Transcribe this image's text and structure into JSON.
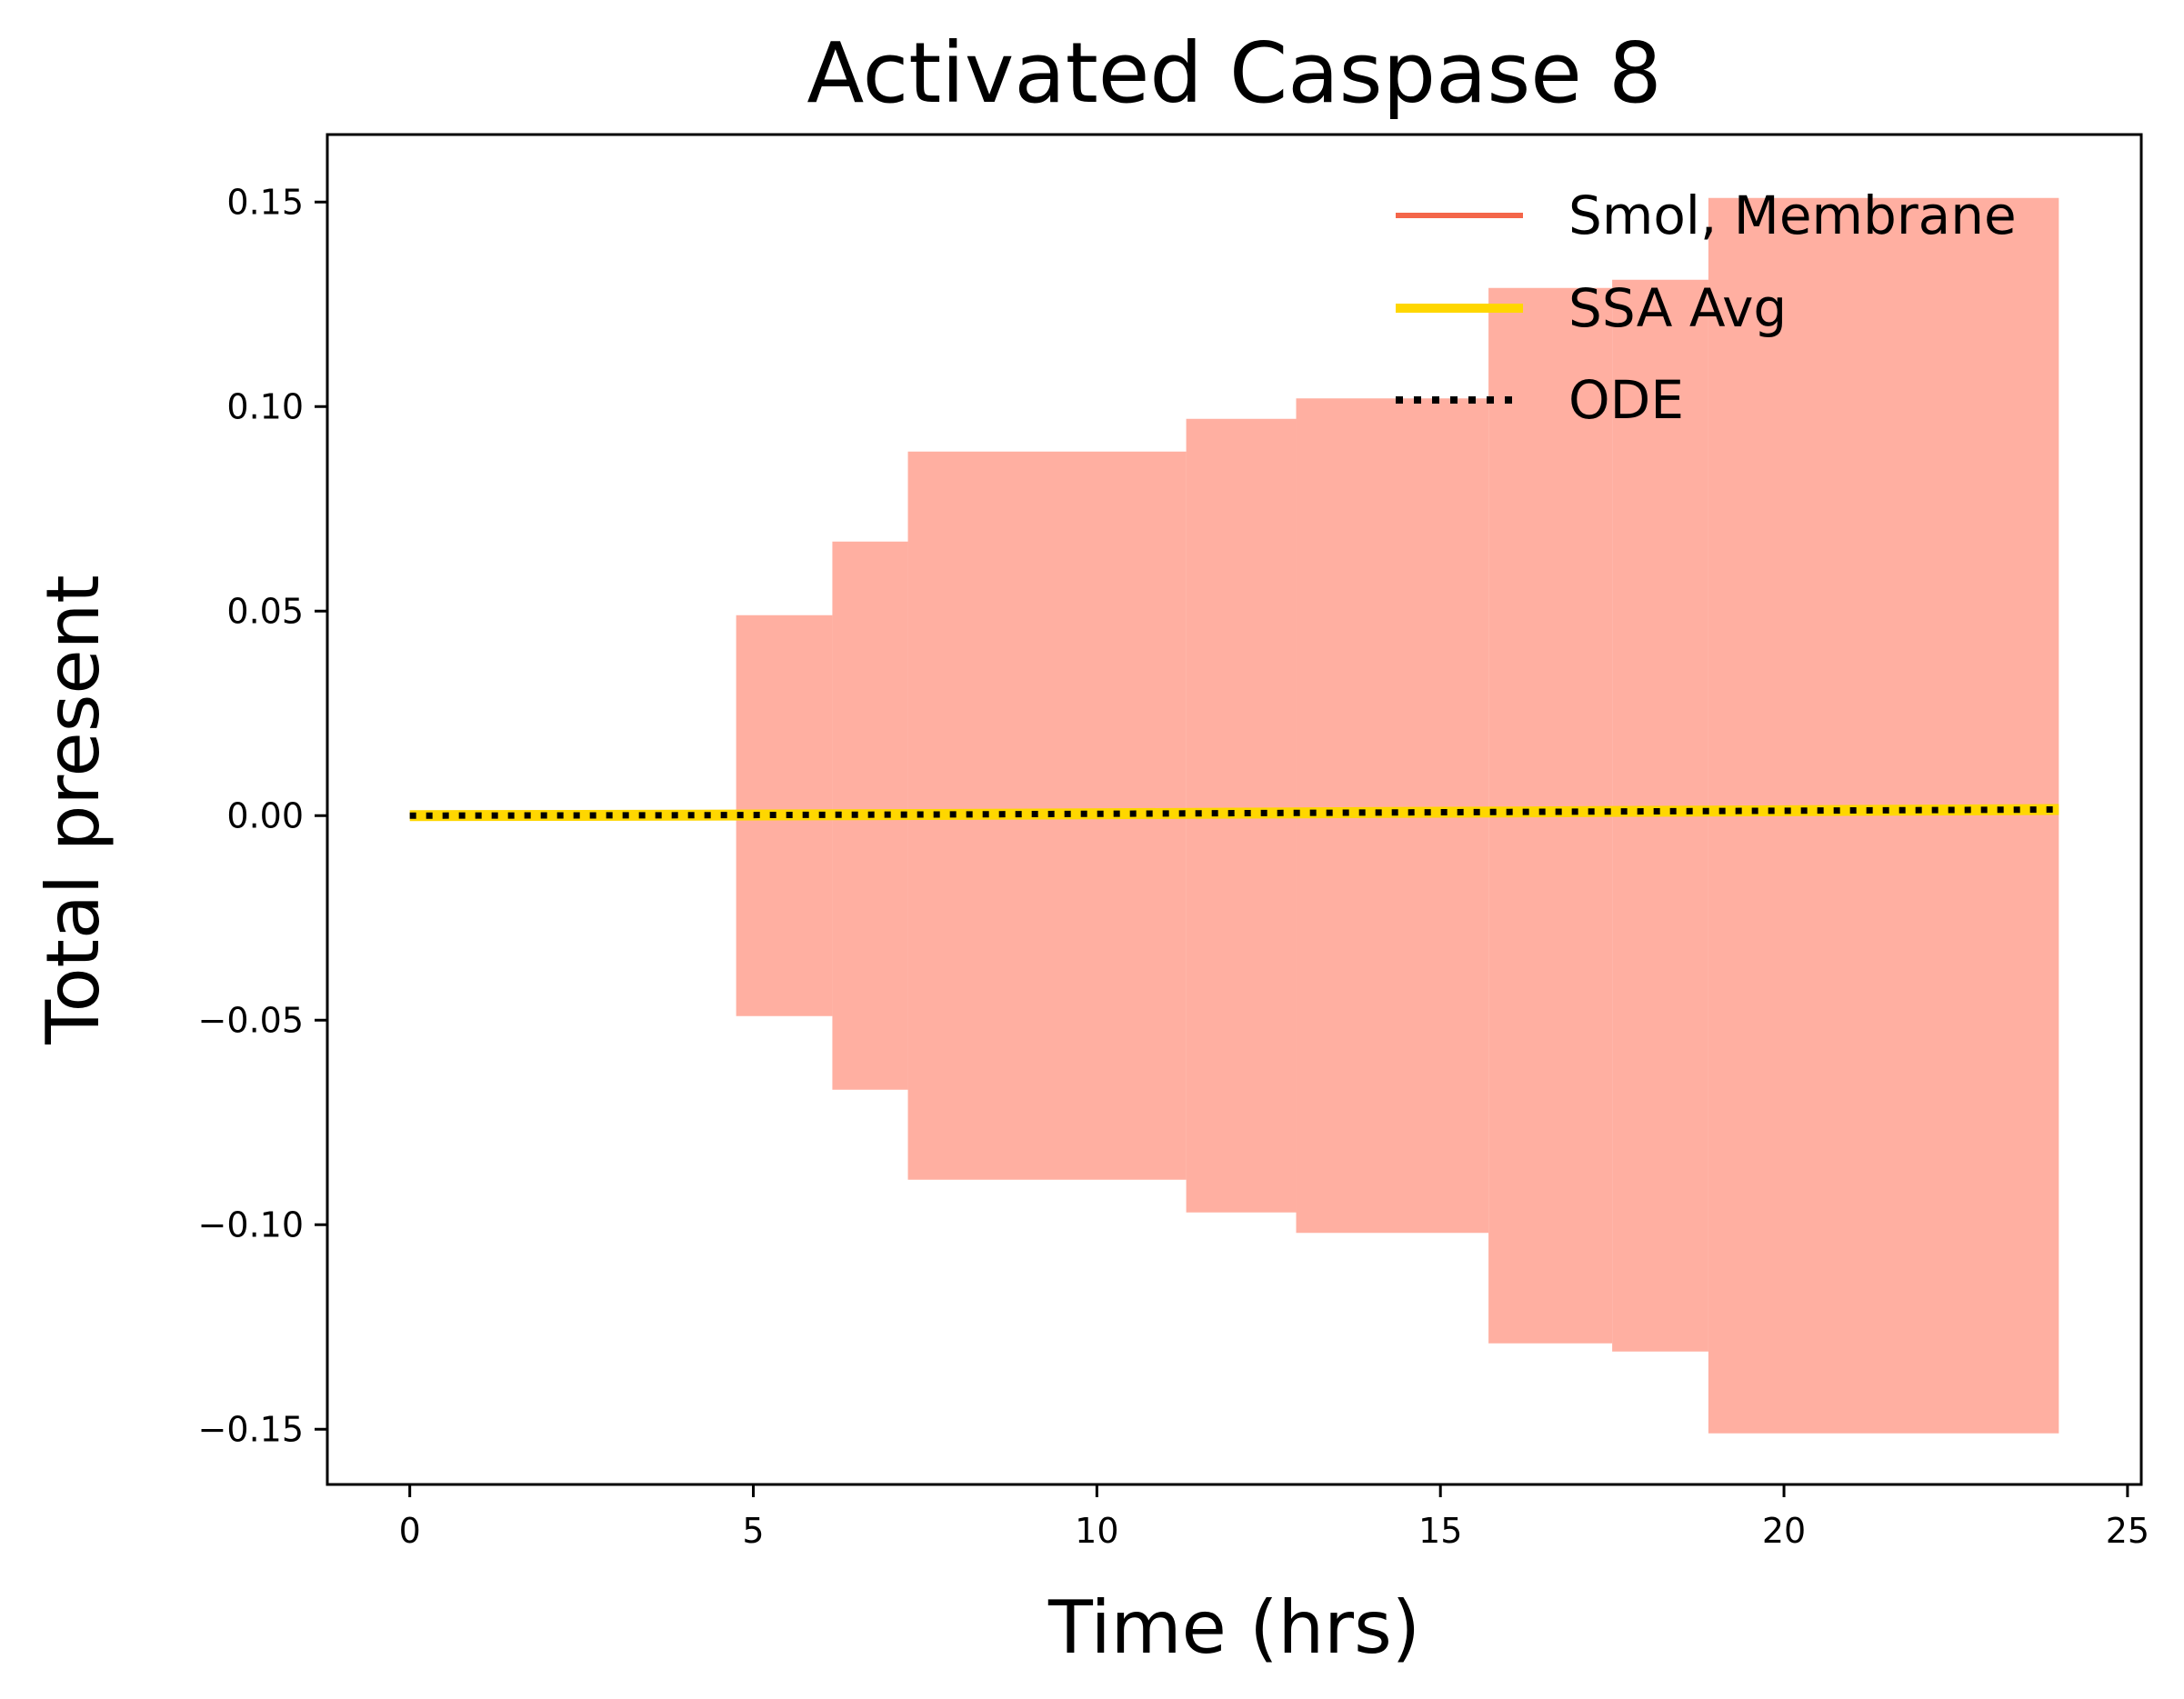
{
  "chart_data": {
    "type": "line",
    "title": "Activated Caspase 8",
    "xlabel": "Time (hrs)",
    "ylabel": "Total present",
    "xlim": [
      -1.2,
      25.2
    ],
    "ylim": [
      -0.1635,
      0.1665
    ],
    "xticks": [
      0,
      5,
      10,
      15,
      20,
      25
    ],
    "xtick_labels": [
      "0",
      "5",
      "10",
      "15",
      "20",
      "25"
    ],
    "yticks": [
      -0.15,
      -0.1,
      -0.05,
      0.0,
      0.05,
      0.1,
      0.15
    ],
    "ytick_labels": [
      "−0.15",
      "−0.10",
      "−0.05",
      "0.00",
      "0.05",
      "0.10",
      "0.15"
    ],
    "grid": false,
    "legend_position": "top-right",
    "series": [
      {
        "name": "Smol, Membrane",
        "style": "oscillating band",
        "color": "#f4664a",
        "band_color": "#ffafa1",
        "envelope": [
          {
            "x0": 4.75,
            "x1": 6.15,
            "amplitude": 0.049
          },
          {
            "x0": 6.15,
            "x1": 7.25,
            "amplitude": 0.067
          },
          {
            "x0": 7.25,
            "x1": 11.3,
            "amplitude": 0.089
          },
          {
            "x0": 11.3,
            "x1": 12.9,
            "amplitude": 0.097
          },
          {
            "x0": 12.9,
            "x1": 15.7,
            "amplitude": 0.102
          },
          {
            "x0": 15.7,
            "x1": 17.5,
            "amplitude": 0.129
          },
          {
            "x0": 17.5,
            "x1": 18.9,
            "amplitude": 0.131
          },
          {
            "x0": 18.9,
            "x1": 24.0,
            "amplitude": 0.151
          }
        ]
      },
      {
        "name": "SSA Avg",
        "color": "#ffd700",
        "x": [
          0,
          4,
          8,
          12,
          16,
          20,
          24
        ],
        "y": [
          0.0,
          0.0001,
          0.0003,
          0.0006,
          0.0009,
          0.0012,
          0.0015
        ]
      },
      {
        "name": "ODE",
        "color": "#000000",
        "style": "dotted",
        "x": [
          0,
          4,
          8,
          12,
          16,
          20,
          24
        ],
        "y": [
          0.0,
          0.0001,
          0.0003,
          0.0006,
          0.0009,
          0.0012,
          0.0015
        ]
      }
    ]
  }
}
